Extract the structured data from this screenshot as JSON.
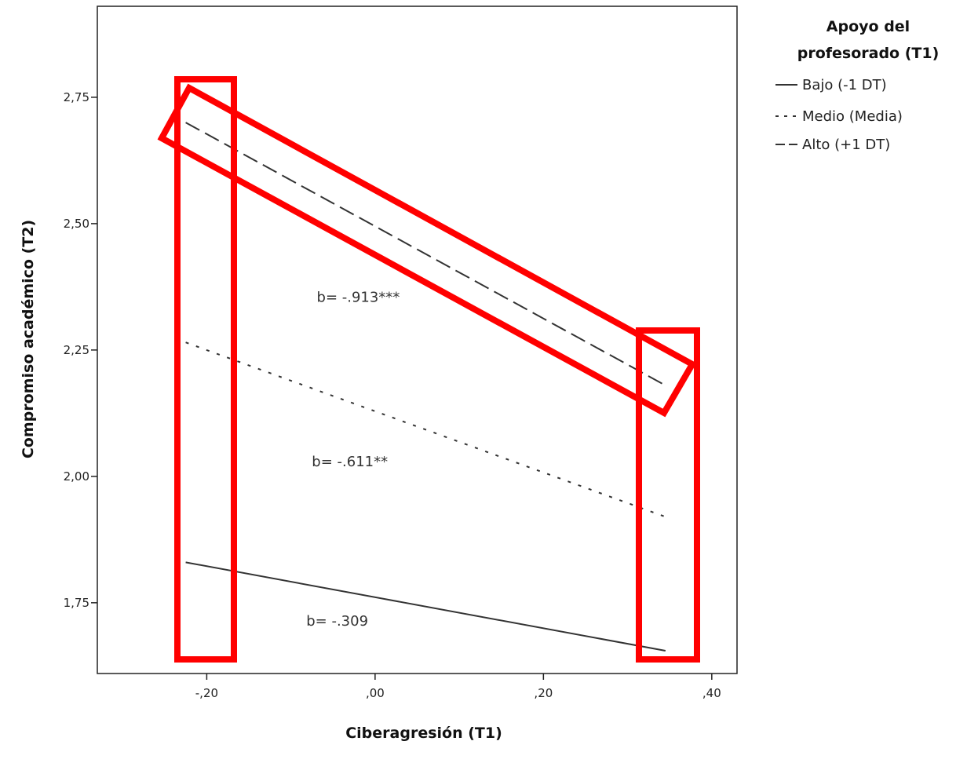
{
  "chart_data": {
    "type": "line",
    "xlabel": "Ciberagresión (T1)",
    "ylabel": "Compromiso académico (T2)",
    "xlim": [
      -0.33,
      0.43
    ],
    "ylim": [
      1.61,
      2.93
    ],
    "x_ticks": [
      {
        "value": -0.2,
        "label": "-,20"
      },
      {
        "value": 0.0,
        "label": ",00"
      },
      {
        "value": 0.2,
        "label": ",20"
      },
      {
        "value": 0.4,
        "label": ",40"
      }
    ],
    "y_ticks": [
      {
        "value": 1.75,
        "label": "1,75"
      },
      {
        "value": 2.0,
        "label": "2,00"
      },
      {
        "value": 2.25,
        "label": "2,25"
      },
      {
        "value": 2.5,
        "label": "2,50"
      },
      {
        "value": 2.75,
        "label": "2,75"
      }
    ],
    "legend": {
      "title_line1": "Apoyo del",
      "title_line2": "profesorado (T1)",
      "position": "right"
    },
    "series": [
      {
        "name": "Bajo (-1 DT)",
        "style": "solid",
        "x": [
          -0.225,
          0.345
        ],
        "y": [
          1.83,
          1.655
        ]
      },
      {
        "name": "Medio (Media)",
        "style": "dotted",
        "x": [
          -0.225,
          0.345
        ],
        "y": [
          2.265,
          1.92
        ]
      },
      {
        "name": "Alto (+1 DT)",
        "style": "dashed",
        "x": [
          -0.225,
          0.345
        ],
        "y": [
          2.7,
          2.18
        ]
      }
    ],
    "annotations": [
      {
        "text": "b= -.913***",
        "x": -0.02,
        "y": 2.345
      },
      {
        "text": "b= -.611**",
        "x": -0.03,
        "y": 2.02
      },
      {
        "text": "b= -.309",
        "x": -0.045,
        "y": 1.705
      }
    ],
    "highlights_color": "#ff0000",
    "line_color": "#333333",
    "grid": false
  }
}
